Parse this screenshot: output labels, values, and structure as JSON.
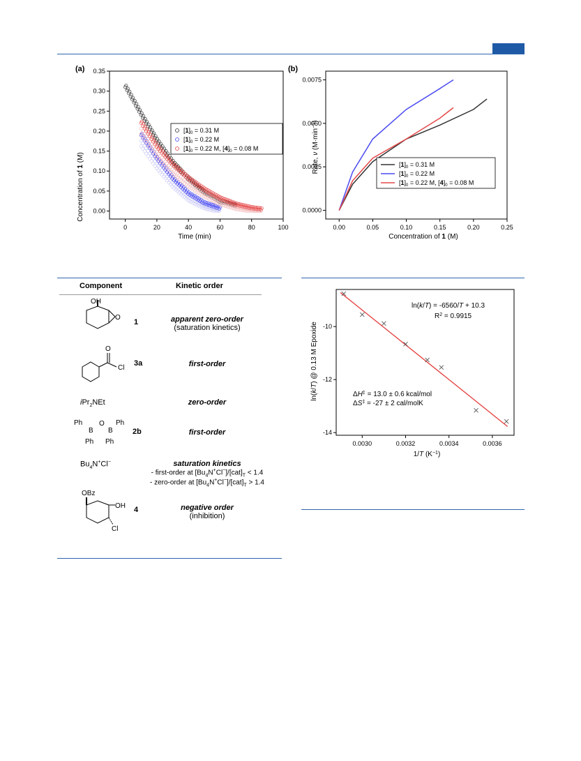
{
  "colors": {
    "rule": "#2e64ad",
    "tab": "#1f5aa6",
    "black": "#333333",
    "blue": "#4a4af0",
    "red": "#e54848",
    "fit": "#e53a3a"
  },
  "chart_data": [
    {
      "type": "scatter",
      "panel": "(a)",
      "xlabel": "Time (min)",
      "ylabel_pre": "Concentration of ",
      "ylabel_bold": "1",
      "ylabel_post": " (M)",
      "xlim": [
        -10,
        100
      ],
      "ylim": [
        -0.02,
        0.35
      ],
      "xticks": [
        "0",
        "20",
        "40",
        "60",
        "80",
        "100"
      ],
      "yticks": [
        "0.00",
        "0.05",
        "0.10",
        "0.15",
        "0.20",
        "0.25",
        "0.30",
        "0.35"
      ],
      "legend": [
        "[1]0 = 0.31 M",
        "[1]0 = 0.22 M",
        "[1]0 = 0.22 M, [4]0 = 0.08 M"
      ],
      "series": [
        {
          "name": "[1]0 = 0.31 M",
          "color": "black",
          "x": [
            0,
            10,
            20,
            30,
            40,
            50,
            60,
            70
          ],
          "y": [
            0.31,
            0.24,
            0.175,
            0.12,
            0.078,
            0.045,
            0.022,
            0.012
          ]
        },
        {
          "name": "[1]0 = 0.22 M",
          "color": "blue",
          "x": [
            10,
            20,
            30,
            40,
            50,
            60
          ],
          "y": [
            0.19,
            0.13,
            0.08,
            0.042,
            0.018,
            0.005
          ]
        },
        {
          "name": "[1]0 = 0.22 M, [4]0 = 0.08 M",
          "color": "red",
          "x": [
            10,
            20,
            30,
            40,
            50,
            60,
            70,
            80,
            86
          ],
          "y": [
            0.22,
            0.16,
            0.115,
            0.08,
            0.052,
            0.03,
            0.015,
            0.006,
            0.003
          ]
        }
      ]
    },
    {
      "type": "line",
      "panel": "(b)",
      "xlabel_pre": "Concentration of ",
      "xlabel_bold": "1",
      "xlabel_post": " (M)",
      "ylabel": "Rate, ν (M·min−1)",
      "xlim": [
        -0.02,
        0.25
      ],
      "ylim": [
        -0.0005,
        0.008
      ],
      "xticks": [
        "0.00",
        "0.05",
        "0.10",
        "0.15",
        "0.20",
        "0.25"
      ],
      "yticks": [
        "0.0000",
        "0.0025",
        "0.0050",
        "0.0075"
      ],
      "legend": [
        "[1]0 = 0.31 M",
        "[1]0 = 0.22 M",
        "[1]0 = 0.22 M, [4]0 = 0.08 M"
      ],
      "series": [
        {
          "name": "[1]0 = 0.31 M",
          "color": "black",
          "x": [
            0,
            0.02,
            0.05,
            0.1,
            0.15,
            0.2,
            0.22
          ],
          "y": [
            0,
            0.0015,
            0.0028,
            0.0041,
            0.0049,
            0.0058,
            0.0064
          ]
        },
        {
          "name": "[1]0 = 0.22 M",
          "color": "blue",
          "x": [
            0,
            0.02,
            0.05,
            0.1,
            0.15,
            0.17
          ],
          "y": [
            0,
            0.0022,
            0.0041,
            0.0058,
            0.007,
            0.0075
          ]
        },
        {
          "name": "[1]0 = 0.22 M, [4]0 = 0.08 M",
          "color": "red",
          "x": [
            0,
            0.02,
            0.05,
            0.1,
            0.15,
            0.17
          ],
          "y": [
            0,
            0.0017,
            0.003,
            0.0041,
            0.0053,
            0.0059
          ]
        }
      ]
    },
    {
      "type": "scatter",
      "xlabel": "1/T (K−1)",
      "ylabel": "ln(k/T) @ 0.13 M Epoxide",
      "xlim": [
        0.00288,
        0.0037
      ],
      "ylim": [
        -14.1,
        -8.6
      ],
      "xticks": [
        "0.0030",
        "0.0032",
        "0.0034",
        "0.0036"
      ],
      "yticks": [
        "-10",
        "-12",
        "-14"
      ],
      "points": {
        "x": [
          0.002915,
          0.003,
          0.0031,
          0.0032,
          0.0033,
          0.003365,
          0.003525,
          0.003665
        ],
        "y": [
          -8.76,
          -9.55,
          -9.88,
          -10.66,
          -11.26,
          -11.54,
          -13.16,
          -13.58
        ]
      },
      "fit": {
        "x": [
          0.0029,
          0.00367
        ],
        "y": [
          -8.72,
          -13.77
        ]
      },
      "annotations": [
        "ln(k/T) = -6560/T + 10.3",
        "R2 = 0.9915",
        "ΔH‡ = 13.0 ± 0.6 kcal/mol",
        "ΔS‡ = -27 ± 2 cal/molK"
      ]
    }
  ],
  "table": {
    "headers": [
      "Component",
      "Kinetic order"
    ],
    "rows": [
      {
        "label": "1",
        "order": "apparent zero-order",
        "note": "(saturation kinetics)"
      },
      {
        "label": "3a",
        "order": "first-order"
      },
      {
        "component": "iPr2NEt",
        "order": "zero-order"
      },
      {
        "label": "2b",
        "order": "first-order"
      },
      {
        "component": "Bu4N+Cl−",
        "order": "saturation kinetics",
        "note1": "- first-order at [Bu4N+Cl−]/[cat]T < 1.4",
        "note2": "- zero-order at [Bu4N+Cl−]/[cat]T > 1.4"
      },
      {
        "label": "4",
        "order": "negative order",
        "note": "(inhibition)"
      }
    ]
  },
  "chem": {
    "oh": "OH",
    "o": "O",
    "cl": "Cl",
    "ph": "Ph",
    "b": "B",
    "obz": "OBz"
  }
}
